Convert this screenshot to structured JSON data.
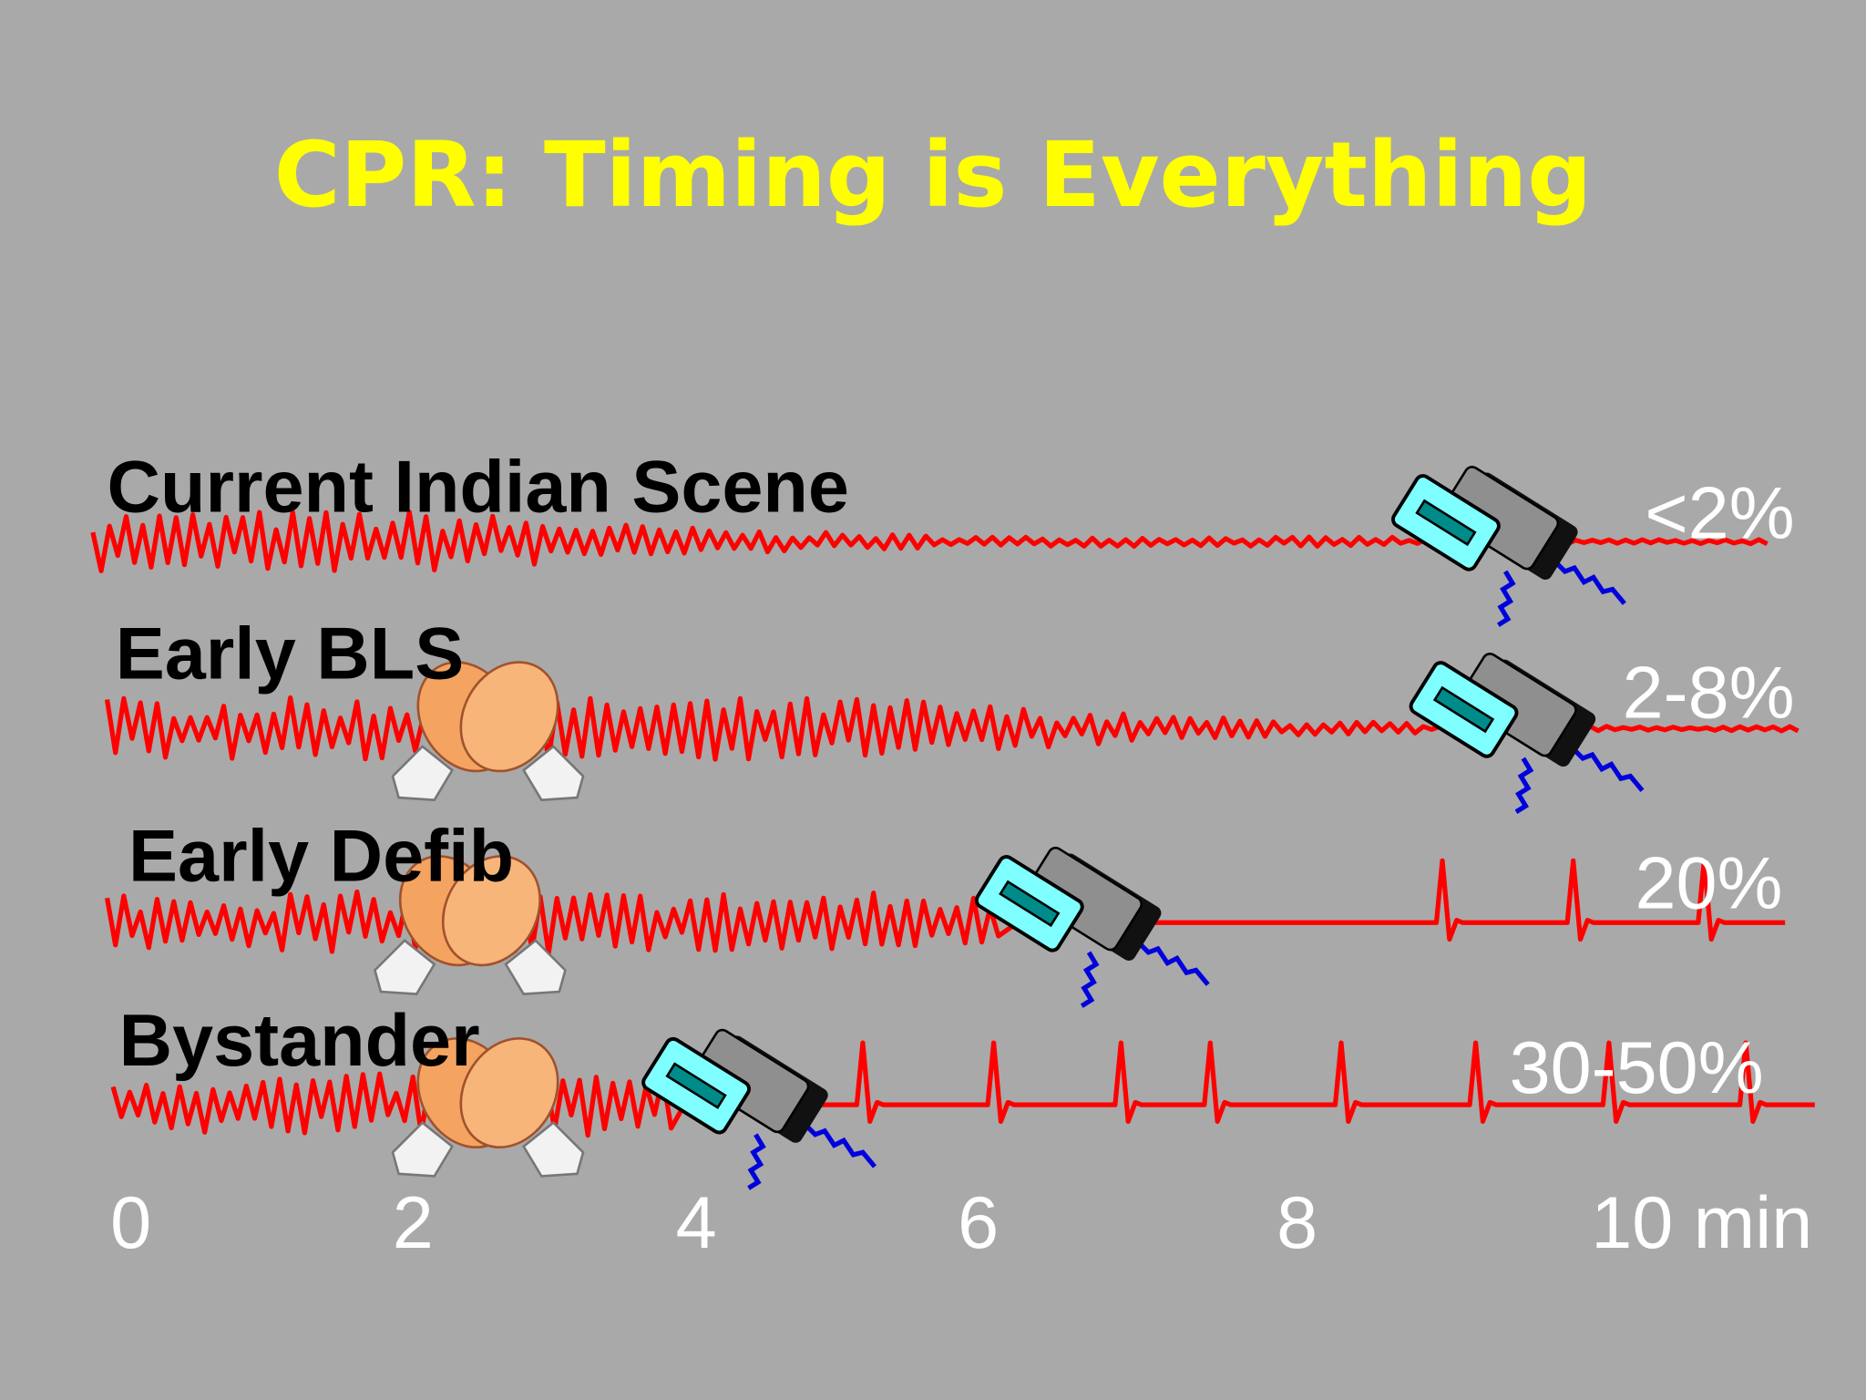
{
  "title": "CPR: Timing is Everything",
  "rows": [
    {
      "label": "Current Indian Scene",
      "survival": "<2%"
    },
    {
      "label": "Early BLS",
      "survival": "2-8%"
    },
    {
      "label": "Early Defib",
      "survival": "20%"
    },
    {
      "label": "Bystander",
      "survival": "30-50%"
    }
  ],
  "time_axis": [
    "0",
    "2",
    "4",
    "6",
    "8",
    "10 min"
  ]
}
